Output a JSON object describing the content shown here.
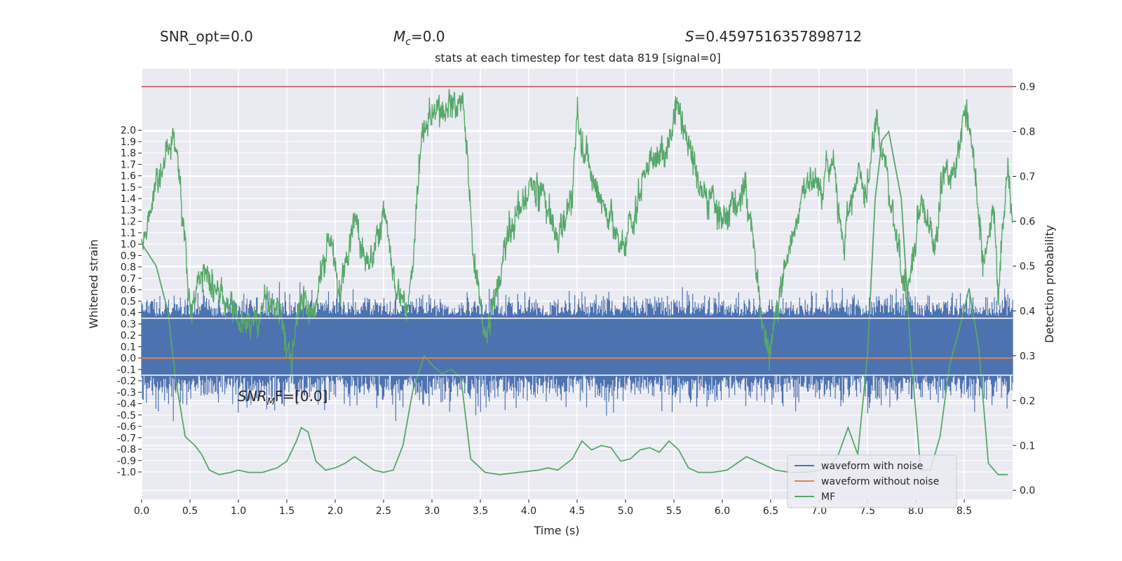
{
  "header": {
    "snr_opt": "SNR_opt=0.0",
    "mc_symbol": "M",
    "mc_subscript": "c",
    "mc_value": "=0.0",
    "s_symbol": "S",
    "s_value": "=0.4597516357898712"
  },
  "chart_data": {
    "type": "line",
    "title": "stats at each timestep for test data 819 [signal=0]",
    "xlabel": "Time (s)",
    "ylabel_left": "Whitened strain",
    "ylabel_right": "Detection probability",
    "xlim": [
      0,
      9
    ],
    "ylim_left": [
      -1.24,
      2.54
    ],
    "ylim_right": [
      -0.02,
      0.94
    ],
    "x_ticks": [
      "0.0",
      "0.5",
      "1.0",
      "1.5",
      "2.0",
      "2.5",
      "3.0",
      "3.5",
      "4.0",
      "4.5",
      "5.0",
      "5.5",
      "6.0",
      "6.5",
      "7.0",
      "7.5",
      "8.0",
      "8.5"
    ],
    "y_ticks_left": [
      "2.0",
      "1.9",
      "1.8",
      "1.7",
      "1.6",
      "1.5",
      "1.4",
      "1.3",
      "1.2",
      "1.1",
      "1.0",
      "0.9",
      "0.8",
      "0.7",
      "0.6",
      "0.5",
      "0.4",
      "0.3",
      "0.2",
      "0.1",
      "0.0",
      "-0.1",
      "-0.2",
      "-0.3",
      "-0.4",
      "-0.5",
      "-0.6",
      "-0.7",
      "-0.8",
      "-0.9",
      "-1.0"
    ],
    "y_ticks_right": [
      "0.9",
      "0.8",
      "0.7",
      "0.6",
      "0.5",
      "0.4",
      "0.3",
      "0.2",
      "0.1",
      "0.0"
    ],
    "annotation": {
      "base": "SNR",
      "sub": "M",
      "rest": "F=[0.0]",
      "x": 1.0,
      "y": -0.07
    },
    "threshold": {
      "value": 0.9,
      "color": "#c44e52"
    },
    "series": [
      {
        "name": "waveform with noise",
        "color": "#4c72b0",
        "axis": "left",
        "description": "dense noise band",
        "band_core": [
          -0.15,
          0.37
        ],
        "band_outer": [
          -0.62,
          0.62
        ]
      },
      {
        "name": "waveform without noise",
        "color": "#dd8452",
        "axis": "left",
        "constant": 0.0
      },
      {
        "name": "MF",
        "color": "#55a868",
        "axis": "right",
        "x": [
          0.0,
          0.15,
          0.27,
          0.35,
          0.45,
          0.55,
          0.62,
          0.7,
          0.8,
          0.92,
          1.0,
          1.1,
          1.25,
          1.4,
          1.5,
          1.6,
          1.65,
          1.72,
          1.8,
          1.9,
          2.0,
          2.1,
          2.2,
          2.3,
          2.4,
          2.5,
          2.6,
          2.7,
          2.8,
          2.92,
          3.0,
          3.1,
          3.2,
          3.3,
          3.4,
          3.55,
          3.7,
          3.9,
          4.1,
          4.2,
          4.3,
          4.45,
          4.55,
          4.65,
          4.75,
          4.85,
          4.95,
          5.05,
          5.15,
          5.25,
          5.35,
          5.45,
          5.55,
          5.65,
          5.75,
          5.9,
          6.05,
          6.15,
          6.25,
          6.4,
          6.55,
          6.7,
          6.85,
          7.0,
          7.1,
          7.2,
          7.3,
          7.4,
          7.5,
          7.58,
          7.65,
          7.72,
          7.85,
          7.95,
          8.05,
          8.15,
          8.25,
          8.35,
          8.45,
          8.55,
          8.65,
          8.75,
          8.85,
          8.95
        ],
        "y": [
          0.55,
          0.5,
          0.4,
          0.25,
          0.12,
          0.1,
          0.08,
          0.045,
          0.035,
          0.04,
          0.045,
          0.04,
          0.04,
          0.05,
          0.065,
          0.11,
          0.14,
          0.13,
          0.065,
          0.045,
          0.05,
          0.06,
          0.075,
          0.06,
          0.045,
          0.04,
          0.045,
          0.1,
          0.22,
          0.3,
          0.28,
          0.26,
          0.27,
          0.25,
          0.07,
          0.04,
          0.035,
          0.04,
          0.045,
          0.05,
          0.045,
          0.07,
          0.11,
          0.09,
          0.1,
          0.095,
          0.065,
          0.07,
          0.09,
          0.095,
          0.085,
          0.11,
          0.09,
          0.05,
          0.04,
          0.04,
          0.045,
          0.06,
          0.075,
          0.06,
          0.045,
          0.04,
          0.04,
          0.045,
          0.05,
          0.08,
          0.14,
          0.08,
          0.3,
          0.65,
          0.78,
          0.8,
          0.65,
          0.3,
          0.045,
          0.045,
          0.12,
          0.28,
          0.36,
          0.45,
          0.32,
          0.06,
          0.035,
          0.035
        ]
      },
      {
        "name": "detection probability",
        "color": "#55a868",
        "axis": "right",
        "description": "noisy detection probability trace"
      }
    ],
    "legend": {
      "placement": "lower-right",
      "entries": [
        "waveform with noise",
        "waveform without noise",
        "MF"
      ]
    },
    "grid": true,
    "background": "#eaeaf2"
  }
}
